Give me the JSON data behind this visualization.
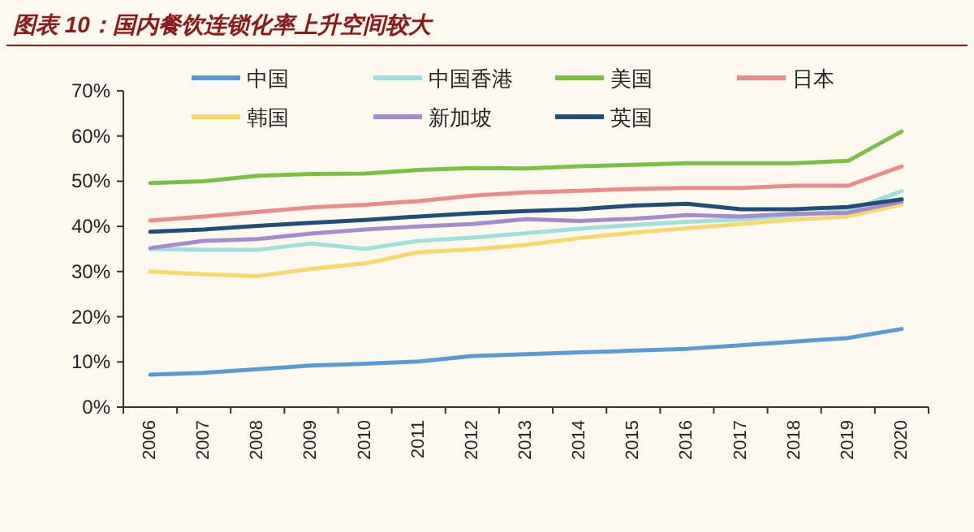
{
  "chart_data": {
    "type": "line",
    "title": "图表 10：国内餐饮连锁化率上升空间较大",
    "categories": [
      "2006",
      "2007",
      "2008",
      "2009",
      "2010",
      "2011",
      "2012",
      "2013",
      "2014",
      "2015",
      "2016",
      "2017",
      "2018",
      "2019",
      "2020"
    ],
    "series": [
      {
        "name": "中国",
        "color": "#5b9bd5",
        "values": [
          7.2,
          7.6,
          8.4,
          9.2,
          9.6,
          10.1,
          11.3,
          11.7,
          12.1,
          12.5,
          12.9,
          13.7,
          14.5,
          15.3,
          17.3
        ]
      },
      {
        "name": "中国香港",
        "color": "#9ee0dc",
        "values": [
          35,
          34.8,
          34.8,
          36.2,
          35,
          36.8,
          37.5,
          38.5,
          39.5,
          40.3,
          41,
          41.5,
          42.5,
          43.5,
          47.8
        ]
      },
      {
        "name": "美国",
        "color": "#7ac143",
        "values": [
          49.6,
          50,
          51.2,
          51.6,
          51.7,
          52.5,
          52.9,
          52.8,
          53.3,
          53.6,
          54,
          54,
          54,
          54.5,
          61
        ]
      },
      {
        "name": "日本",
        "color": "#ec8c8a",
        "values": [
          41.3,
          42.2,
          43.2,
          44.2,
          44.8,
          45.6,
          46.8,
          47.5,
          47.9,
          48.3,
          48.5,
          48.5,
          49,
          49,
          53.3
        ]
      },
      {
        "name": "韩国",
        "color": "#f7d86a",
        "values": [
          30,
          29.4,
          29,
          30.6,
          31.8,
          34.3,
          34.9,
          35.9,
          37.4,
          38.6,
          39.6,
          40.5,
          41.5,
          42.2,
          44.8
        ]
      },
      {
        "name": "新加坡",
        "color": "#a58bce",
        "values": [
          35.2,
          36.8,
          37.2,
          38.4,
          39.3,
          40,
          40.5,
          41.6,
          41.2,
          41.7,
          42.5,
          42.2,
          42.8,
          43,
          45.5
        ]
      },
      {
        "name": "英国",
        "color": "#1f4e79",
        "values": [
          38.8,
          39.3,
          40.1,
          40.8,
          41.4,
          42.2,
          42.9,
          43.4,
          43.8,
          44.6,
          45,
          43.8,
          43.8,
          44.3,
          46
        ]
      }
    ],
    "ylim": [
      0,
      70
    ],
    "yticks": [
      {
        "value": 0,
        "label": "0%"
      },
      {
        "value": 10,
        "label": "10%"
      },
      {
        "value": 20,
        "label": "20%"
      },
      {
        "value": 30,
        "label": "30%"
      },
      {
        "value": 40,
        "label": "40%"
      },
      {
        "value": 50,
        "label": "50%"
      },
      {
        "value": 60,
        "label": "60%"
      },
      {
        "value": 70,
        "label": "70%"
      }
    ],
    "grid": false,
    "legend": "top",
    "marker": "none",
    "line_style": "solid"
  }
}
